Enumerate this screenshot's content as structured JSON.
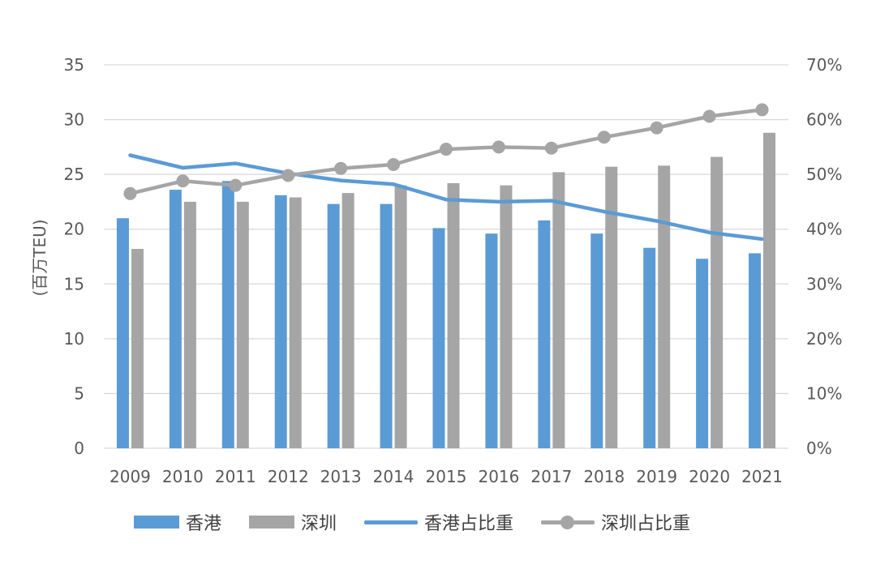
{
  "chart_data": {
    "type": "bar",
    "categories": [
      "2009",
      "2010",
      "2011",
      "2012",
      "2013",
      "2014",
      "2015",
      "2016",
      "2017",
      "2018",
      "2019",
      "2020",
      "2021"
    ],
    "series": [
      {
        "name": "香港",
        "kind": "bar",
        "axis": "left",
        "color": "#5b9bd5",
        "values": [
          21.0,
          23.6,
          24.4,
          23.1,
          22.3,
          22.3,
          20.1,
          19.6,
          20.8,
          19.6,
          18.3,
          17.3,
          17.8
        ]
      },
      {
        "name": "深圳",
        "kind": "bar",
        "axis": "left",
        "color": "#a5a5a5",
        "values": [
          18.2,
          22.5,
          22.5,
          22.9,
          23.3,
          24.0,
          24.2,
          24.0,
          25.2,
          25.7,
          25.8,
          26.6,
          28.8
        ]
      },
      {
        "name": "香港占比重",
        "kind": "line",
        "axis": "right",
        "color": "#5b9bd5",
        "values": [
          53.5,
          51.2,
          52.0,
          50.2,
          48.9,
          48.2,
          45.4,
          45.0,
          45.2,
          43.2,
          41.5,
          39.4,
          38.2
        ]
      },
      {
        "name": "深圳占比重",
        "kind": "line",
        "axis": "right",
        "color": "#a5a5a5",
        "markers": true,
        "values": [
          46.5,
          48.8,
          48.0,
          49.8,
          51.1,
          51.8,
          54.6,
          55.0,
          54.8,
          56.8,
          58.5,
          60.6,
          61.8
        ]
      }
    ],
    "ylabel": "(百万TEU)",
    "ylim": [
      0,
      35
    ],
    "yticks": [
      "0",
      "5",
      "10",
      "15",
      "20",
      "25",
      "30",
      "35"
    ],
    "y2lim": [
      0,
      70
    ],
    "y2ticks": [
      "0%",
      "10%",
      "20%",
      "30%",
      "40%",
      "50%",
      "60%",
      "70%"
    ],
    "grid": true,
    "legend": "bottom"
  }
}
